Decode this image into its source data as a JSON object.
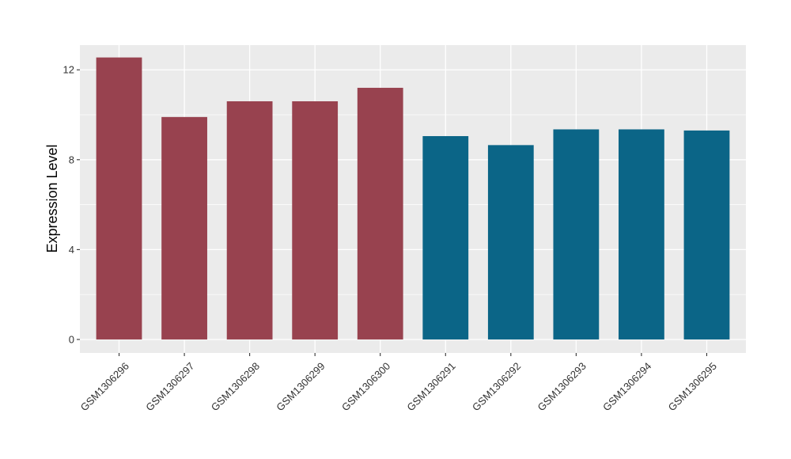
{
  "chart_data": {
    "type": "bar",
    "title": "",
    "xlabel": "",
    "ylabel": "Expression Level",
    "categories": [
      "GSM1306296",
      "GSM1306297",
      "GSM1306298",
      "GSM1306299",
      "GSM1306300",
      "GSM1306291",
      "GSM1306292",
      "GSM1306293",
      "GSM1306294",
      "GSM1306295"
    ],
    "values": [
      12.55,
      9.9,
      10.6,
      10.6,
      11.2,
      9.05,
      8.65,
      9.35,
      9.35,
      9.3
    ],
    "bar_colors": [
      "#98424F",
      "#98424F",
      "#98424F",
      "#98424F",
      "#98424F",
      "#0B6587",
      "#0B6587",
      "#0B6587",
      "#0B6587",
      "#0B6587"
    ],
    "ylim": [
      -0.6,
      13.1
    ],
    "yticks": [
      0,
      4,
      8,
      12
    ],
    "ytick_labels": [
      "0",
      "4",
      "8",
      "12"
    ],
    "grid": true,
    "legend": "none",
    "panel_background": "#EBEBEB",
    "grid_color": "#FFFFFF"
  }
}
